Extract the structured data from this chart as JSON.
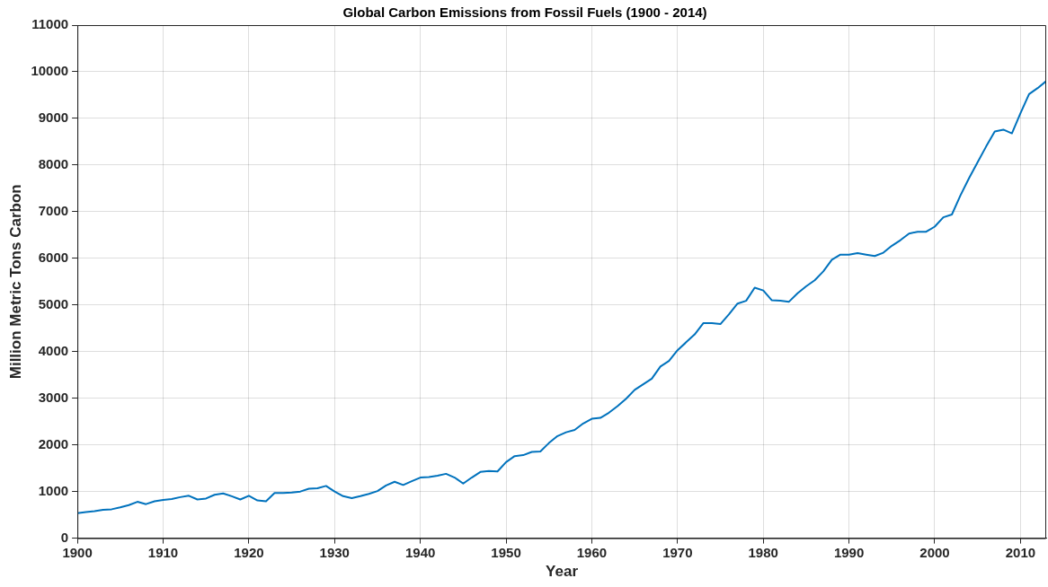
{
  "chart_data": {
    "type": "line",
    "title": "Global Carbon Emissions from Fossil Fuels (1900 - 2014)",
    "xlabel": "Year",
    "ylabel": "Million Metric Tons Carbon",
    "x": [
      1900,
      1901,
      1902,
      1903,
      1904,
      1905,
      1906,
      1907,
      1908,
      1909,
      1910,
      1911,
      1912,
      1913,
      1914,
      1915,
      1916,
      1917,
      1918,
      1919,
      1920,
      1921,
      1922,
      1923,
      1924,
      1925,
      1926,
      1927,
      1928,
      1929,
      1930,
      1931,
      1932,
      1933,
      1934,
      1935,
      1936,
      1937,
      1938,
      1939,
      1940,
      1941,
      1942,
      1943,
      1944,
      1945,
      1946,
      1947,
      1948,
      1949,
      1950,
      1951,
      1952,
      1953,
      1954,
      1955,
      1956,
      1957,
      1958,
      1959,
      1960,
      1961,
      1962,
      1963,
      1964,
      1965,
      1966,
      1967,
      1968,
      1969,
      1970,
      1971,
      1972,
      1973,
      1974,
      1975,
      1976,
      1977,
      1978,
      1979,
      1980,
      1981,
      1982,
      1983,
      1984,
      1985,
      1986,
      1987,
      1988,
      1989,
      1990,
      1991,
      1992,
      1993,
      1994,
      1995,
      1996,
      1997,
      1998,
      1999,
      2000,
      2001,
      2002,
      2003,
      2004,
      2005,
      2006,
      2007,
      2008,
      2009,
      2010,
      2011,
      2012,
      2013
    ],
    "series": [
      {
        "color": "#0072bd",
        "values": [
          534,
          560,
          580,
          610,
          620,
          660,
          710,
          780,
          730,
          790,
          820,
          840,
          880,
          910,
          830,
          850,
          930,
          960,
          900,
          830,
          910,
          810,
          790,
          970,
          970,
          980,
          1000,
          1060,
          1070,
          1120,
          1000,
          900,
          860,
          900,
          950,
          1010,
          1130,
          1210,
          1140,
          1220,
          1300,
          1310,
          1340,
          1380,
          1300,
          1170,
          1300,
          1420,
          1440,
          1430,
          1630,
          1760,
          1780,
          1850,
          1860,
          2040,
          2190,
          2270,
          2320,
          2460,
          2560,
          2580,
          2690,
          2830,
          2990,
          3180,
          3300,
          3420,
          3680,
          3800,
          4030,
          4200,
          4370,
          4610,
          4610,
          4590,
          4800,
          5030,
          5090,
          5370,
          5310,
          5100,
          5090,
          5070,
          5250,
          5400,
          5530,
          5720,
          5970,
          6080,
          6080,
          6110,
          6080,
          6050,
          6120,
          6270,
          6390,
          6530,
          6570,
          6570,
          6680,
          6880,
          6940,
          7350,
          7720,
          8060,
          8400,
          8720,
          8760,
          8680,
          9110,
          9520,
          9650,
          9800
        ]
      }
    ],
    "xlim": [
      1900,
      2013
    ],
    "xticks": [
      1900,
      1910,
      1920,
      1930,
      1940,
      1950,
      1960,
      1970,
      1980,
      1990,
      2000,
      2010
    ],
    "ylim": [
      0,
      11000
    ],
    "yticks": [
      0,
      1000,
      2000,
      3000,
      4000,
      5000,
      6000,
      7000,
      8000,
      9000,
      10000,
      11000
    ],
    "grid": true,
    "legend": false,
    "marker": "none",
    "line_style": "solid"
  }
}
